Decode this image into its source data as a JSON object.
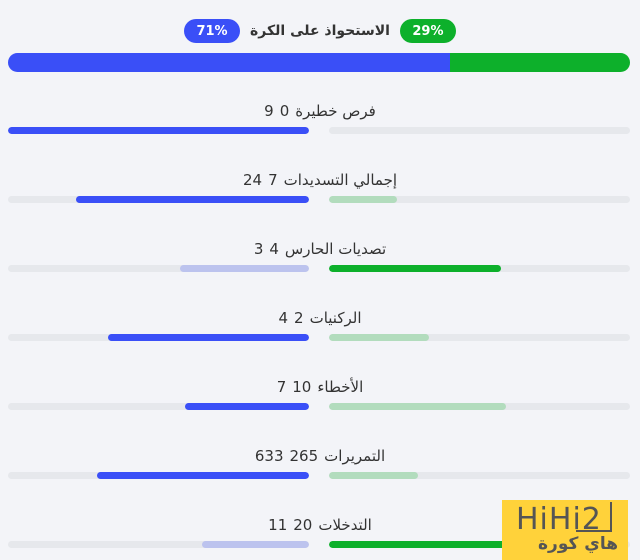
{
  "possession": {
    "label": "الاستحواذ على الكرة",
    "left": "71%",
    "right": "29%",
    "left_value": 71,
    "right_value": 29
  },
  "colors": {
    "left_strong": "#3a4ff7",
    "left_weak": "#bcc3ee",
    "right_strong": "#0db02b",
    "right_weak": "#b2dcbd",
    "track": "#e6e8ec",
    "background": "#f3f4f8"
  },
  "stats": [
    {
      "label": "فرص خطيرة",
      "left": "9",
      "right": "0",
      "left_strong": true,
      "right_strong": false
    },
    {
      "label": "إجمالي التسديدات",
      "left": "24",
      "right": "7",
      "left_strong": true,
      "right_strong": false
    },
    {
      "label": "تصديات الحارس",
      "left": "3",
      "right": "4",
      "left_strong": false,
      "right_strong": true
    },
    {
      "label": "الركنيات",
      "left": "4",
      "right": "2",
      "left_strong": true,
      "right_strong": false
    },
    {
      "label": "الأخطاء",
      "left": "7",
      "right": "10",
      "left_strong": true,
      "right_strong": false
    },
    {
      "label": "التمريرات",
      "left": "633",
      "right": "265",
      "left_strong": true,
      "right_strong": false
    },
    {
      "label": "التدخلات",
      "left": "11",
      "right": "20",
      "left_strong": false,
      "right_strong": true
    }
  ],
  "logo": {
    "text_en": "HiHi2",
    "text_ar": "هاي كورة"
  }
}
